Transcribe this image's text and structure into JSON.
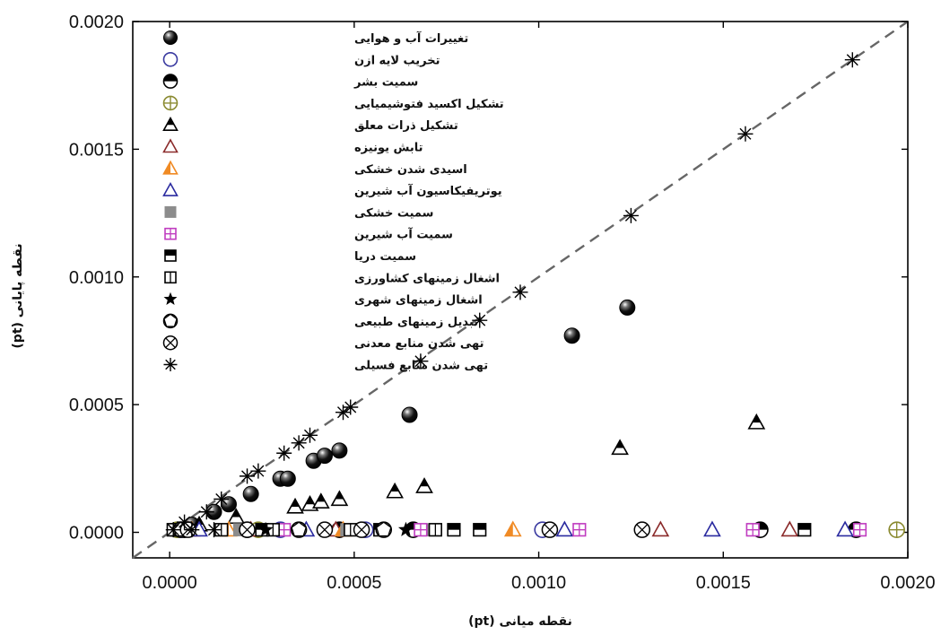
{
  "chart_data": {
    "type": "scatter",
    "title": "",
    "xlabel": "(pt) نقطه میانی",
    "ylabel": "(pt) نقطه پایانی",
    "xlim": [
      -0.0001,
      0.002
    ],
    "ylim": [
      -0.0001,
      0.002
    ],
    "xticks": [
      "0.0000",
      "0.0005",
      "0.0010",
      "0.0015",
      "0.0020"
    ],
    "yticks": [
      "0.0000",
      "0.0005",
      "0.0010",
      "0.0015",
      "0.0020"
    ],
    "tick_values": [
      0,
      0.0005,
      0.001,
      0.0015,
      0.002
    ],
    "grid": false,
    "legend_position": "top-left",
    "reference_line": {
      "style": "dashed",
      "from": [
        -0.0001,
        -0.0001
      ],
      "to": [
        0.002,
        0.002
      ]
    },
    "series": [
      {
        "name": "تغییرات آب و هوایی",
        "marker": "sphere",
        "color": "#000000",
        "points": [
          [
            2e-05,
            1e-05
          ],
          [
            6e-05,
            3e-05
          ],
          [
            0.00012,
            8e-05
          ],
          [
            0.00016,
            0.00011
          ],
          [
            0.00022,
            0.00015
          ],
          [
            0.0003,
            0.00021
          ],
          [
            0.00032,
            0.00021
          ],
          [
            0.00039,
            0.00028
          ],
          [
            0.00042,
            0.0003
          ],
          [
            0.00046,
            0.00032
          ],
          [
            0.00065,
            0.00046
          ],
          [
            0.00109,
            0.00077
          ],
          [
            0.00124,
            0.00088
          ],
          [
            0.0016,
            1e-05
          ],
          [
            0.00186,
            1e-05
          ]
        ]
      },
      {
        "name": "تخریب لایه ازن",
        "marker": "circle-open",
        "color": "#3a3aa0",
        "points": [
          [
            3e-05,
            1e-05
          ],
          [
            0.0003,
            1e-05
          ],
          [
            0.00053,
            1e-05
          ],
          [
            0.00101,
            1e-05
          ]
        ]
      },
      {
        "name": "سمیت بشر",
        "marker": "half-circle",
        "color": "#000000",
        "points": [
          [
            4e-05,
            1e-05
          ],
          [
            0.00021,
            1e-05
          ],
          [
            0.00046,
            1e-05
          ],
          [
            0.00066,
            1e-05
          ],
          [
            0.0016,
            1e-05
          ],
          [
            0.00186,
            1e-05
          ]
        ]
      },
      {
        "name": "تشکیل اکسید فتوشیمیایی",
        "marker": "circle-plus",
        "color": "#8a8a30",
        "points": [
          [
            2e-05,
            1e-05
          ],
          [
            0.00024,
            1e-05
          ],
          [
            0.00197,
            1e-05
          ]
        ]
      },
      {
        "name": "تشکیل ذرات معلق",
        "marker": "half-triangle",
        "color": "#000000",
        "points": [
          [
            8e-05,
            3e-05
          ],
          [
            0.00018,
            6e-05
          ],
          [
            0.00034,
            0.0001
          ],
          [
            0.00038,
            0.00011
          ],
          [
            0.00041,
            0.00012
          ],
          [
            0.00046,
            0.00013
          ],
          [
            0.00061,
            0.00016
          ],
          [
            0.00069,
            0.00018
          ],
          [
            0.00122,
            0.00033
          ],
          [
            0.00159,
            0.00043
          ]
        ]
      },
      {
        "name": "تابش یونیزه",
        "marker": "triangle-open",
        "color": "#8b2b2b",
        "points": [
          [
            5e-05,
            1e-05
          ],
          [
            0.00022,
            1e-05
          ],
          [
            0.00045,
            1e-05
          ],
          [
            0.00133,
            1e-05
          ],
          [
            0.00168,
            1e-05
          ]
        ]
      },
      {
        "name": "اسیدی شدن خشکی",
        "marker": "half-triangle-orange",
        "color": "#f08a24",
        "points": [
          [
            6e-05,
            1e-05
          ],
          [
            0.00016,
            1e-05
          ],
          [
            0.00047,
            1e-05
          ],
          [
            0.00093,
            1e-05
          ]
        ]
      },
      {
        "name": "یوتریفیکاسیون آب شیرین",
        "marker": "triangle-open",
        "color": "#2b2ba0",
        "points": [
          [
            8e-05,
            1e-05
          ],
          [
            0.00037,
            1e-05
          ],
          [
            0.00107,
            1e-05
          ],
          [
            0.00147,
            1e-05
          ],
          [
            0.00183,
            1e-05
          ]
        ]
      },
      {
        "name": "سمیت خشکی",
        "marker": "square-filled",
        "color": "#8c8c8c",
        "points": [
          [
            3e-05,
            1e-05
          ],
          [
            0.00019,
            1e-05
          ],
          [
            0.00048,
            1e-05
          ],
          [
            0.00071,
            1e-05
          ]
        ]
      },
      {
        "name": "سمیت آب شیرین",
        "marker": "square-plus",
        "color": "#c03cc0",
        "points": [
          [
            4e-05,
            1e-05
          ],
          [
            0.00031,
            1e-05
          ],
          [
            0.00068,
            1e-05
          ],
          [
            0.00111,
            1e-05
          ],
          [
            0.00158,
            1e-05
          ],
          [
            0.00187,
            1e-05
          ]
        ]
      },
      {
        "name": "سمیت دریا",
        "marker": "half-square",
        "color": "#000000",
        "points": [
          [
            2e-05,
            1e-05
          ],
          [
            0.00025,
            1e-05
          ],
          [
            0.00057,
            1e-05
          ],
          [
            0.00077,
            1e-05
          ],
          [
            0.00084,
            1e-05
          ],
          [
            0.00172,
            1e-05
          ]
        ]
      },
      {
        "name": "اشغال زمینهای کشاورزی",
        "marker": "square-line",
        "color": "#000000",
        "points": [
          [
            1e-05,
            1e-05
          ],
          [
            0.00014,
            1e-05
          ],
          [
            0.00028,
            1e-05
          ],
          [
            0.00049,
            1e-05
          ],
          [
            0.00072,
            1e-05
          ]
        ]
      },
      {
        "name": "اشغال زمینهای شهری",
        "marker": "star",
        "color": "#000000",
        "points": [
          [
            2e-05,
            1e-05
          ],
          [
            0.00026,
            1e-05
          ],
          [
            0.00064,
            1e-05
          ]
        ]
      },
      {
        "name": "تبدیل زمینهای طبیعی",
        "marker": "circle-pentagon",
        "color": "#000000",
        "points": [
          [
            3e-05,
            1e-05
          ],
          [
            0.00035,
            1e-05
          ],
          [
            0.00058,
            1e-05
          ]
        ]
      },
      {
        "name": "تهی شدن منابع معدنی",
        "marker": "circle-x",
        "color": "#000000",
        "points": [
          [
            5e-05,
            1e-05
          ],
          [
            0.00021,
            1e-05
          ],
          [
            0.00042,
            1e-05
          ],
          [
            0.00052,
            1e-05
          ],
          [
            0.00103,
            1e-05
          ],
          [
            0.00128,
            1e-05
          ]
        ]
      },
      {
        "name": "تهی شدن منابع فسیلی",
        "marker": "asterisk",
        "color": "#000000",
        "points": [
          [
            4e-05,
            4e-05
          ],
          [
            0.0001,
            8e-05
          ],
          [
            0.00014,
            0.00013
          ],
          [
            0.00021,
            0.00022
          ],
          [
            0.00024,
            0.00024
          ],
          [
            0.00031,
            0.00031
          ],
          [
            0.00035,
            0.00035
          ],
          [
            0.00038,
            0.00038
          ],
          [
            0.00047,
            0.00047
          ],
          [
            0.00049,
            0.00049
          ],
          [
            0.00068,
            0.00067
          ],
          [
            0.00084,
            0.00083
          ],
          [
            0.00095,
            0.00094
          ],
          [
            0.00125,
            0.00124
          ],
          [
            0.00156,
            0.00156
          ],
          [
            0.00185,
            0.00185
          ],
          [
            1e-05,
            1e-05
          ],
          [
            6e-05,
            1e-05
          ],
          [
            0.00012,
            1e-05
          ]
        ]
      }
    ]
  }
}
